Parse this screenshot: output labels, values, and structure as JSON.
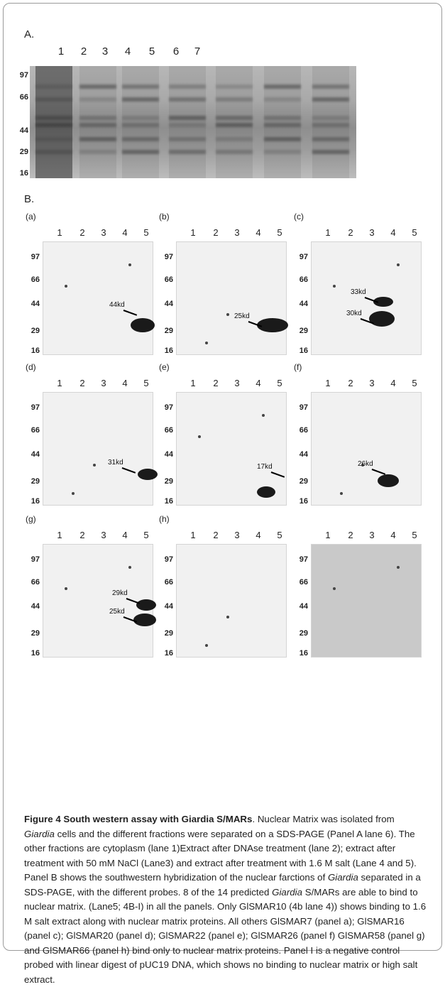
{
  "panel_a": {
    "label": "A.",
    "lanes": [
      "1",
      "2",
      "3",
      "4",
      "5",
      "6",
      "7"
    ],
    "markers": [
      "97",
      "66",
      "44",
      "29",
      "16"
    ]
  },
  "panel_b": {
    "label": "B.",
    "blots": [
      {
        "tag": "(a)",
        "lanes": [
          "1",
          "2",
          "3",
          "4",
          "5"
        ],
        "markers": [
          "97",
          "66",
          "44",
          "29",
          "16"
        ],
        "bands": [
          "44kd"
        ]
      },
      {
        "tag": "(b)",
        "lanes": [
          "1",
          "2",
          "3",
          "4",
          "5"
        ],
        "markers": [
          "97",
          "66",
          "44",
          "29",
          "16"
        ],
        "bands": [
          "25kd"
        ]
      },
      {
        "tag": "(c)",
        "lanes": [
          "1",
          "2",
          "3",
          "4",
          "5"
        ],
        "markers": [
          "97",
          "66",
          "44",
          "29",
          "16"
        ],
        "bands": [
          "33kd",
          "30kd"
        ]
      },
      {
        "tag": "(d)",
        "lanes": [
          "1",
          "2",
          "3",
          "4",
          "5"
        ],
        "markers": [
          "97",
          "66",
          "44",
          "29",
          "16"
        ],
        "bands": [
          "31kd"
        ]
      },
      {
        "tag": "(e)",
        "lanes": [
          "1",
          "2",
          "3",
          "4",
          "5"
        ],
        "markers": [
          "97",
          "66",
          "44",
          "29",
          "16"
        ],
        "bands": [
          "17kd"
        ]
      },
      {
        "tag": "(f)",
        "lanes": [
          "1",
          "2",
          "3",
          "4",
          "5"
        ],
        "markers": [
          "97",
          "66",
          "44",
          "29",
          "16"
        ],
        "bands": [
          "26kd"
        ]
      },
      {
        "tag": "(g)",
        "lanes": [
          "1",
          "2",
          "3",
          "4",
          "5"
        ],
        "markers": [
          "97",
          "66",
          "44",
          "29",
          "16"
        ],
        "bands": [
          "29kd",
          "25kd"
        ]
      },
      {
        "tag": "(h)",
        "lanes": [
          "1",
          "2",
          "3",
          "4",
          "5"
        ],
        "markers": [
          "97",
          "66",
          "44",
          "29",
          "16"
        ],
        "bands": []
      },
      {
        "tag": "",
        "lanes": [
          "1",
          "2",
          "3",
          "4",
          "5"
        ],
        "markers": [
          "97",
          "66",
          "44",
          "29",
          "16"
        ],
        "bands": []
      }
    ]
  },
  "caption": {
    "title": "Figure 4 South western assay with Giardia S/MARs",
    "p1": ". Nuclear Matrix was isolated from ",
    "i1": "Giardia",
    "p2": " cells and the different fractions were separated on a SDS-PAGE (Panel A lane 6). The other fractions are cytoplasm (lane 1)Extract after DNAse treatment (lane 2); extract after treatment with 50 mM NaCl (Lane3) and extract after treatment with 1.6 M salt (Lane 4 and 5). Panel B shows the southwestern hybridization of the nuclear farctions of ",
    "i2": "Giardia",
    "p3": " separated in a SDS-PAGE, with the different probes. 8 of the 14 predicted ",
    "i3": "Giardia",
    "p4": " S/MARs are able to bind to nuclear matrix. (Lane5; 4B-I) in all the panels. Only GlSMAR10 (4b lane 4)) shows binding to 1.6 M salt extract along with nuclear matrix proteins. All others GlSMAR7 (panel a); GlSMAR16 (panel c); GlSMAR20 (panel d); GlSMAR22 (panel e); GlSMAR26 (panel f) GlSMAR58 (panel g) and GlSMAR66 (panel h) bind only to nuclear matrix proteins. Panel I is a negative control probed with linear digest of pUC19 DNA, which shows no binding to nuclear matrix or high salt extract."
  }
}
